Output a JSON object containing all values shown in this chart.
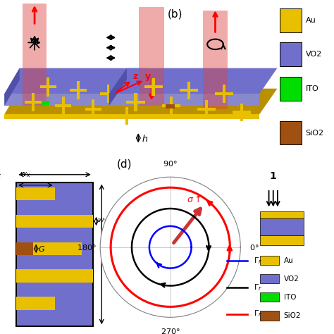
{
  "bg_color": "#ffffff",
  "colors": {
    "gold": "#E8C000",
    "gold_dark": "#B89000",
    "purple_top": "#7070CC",
    "purple_side": "#5050AA",
    "purple_front": "#8888CC",
    "green": "#00DD00",
    "brown": "#A05010",
    "laser_red": "#DD4444",
    "laser_alpha": 0.45
  },
  "legend_colors": [
    "#E8C000",
    "#7070CC",
    "#00DD00",
    "#A05010"
  ],
  "legend_labels": [
    "Au",
    "VO2",
    "ITO",
    "SiO2"
  ],
  "polar_labels": [
    "0°",
    "90°",
    "180°",
    "270°"
  ]
}
